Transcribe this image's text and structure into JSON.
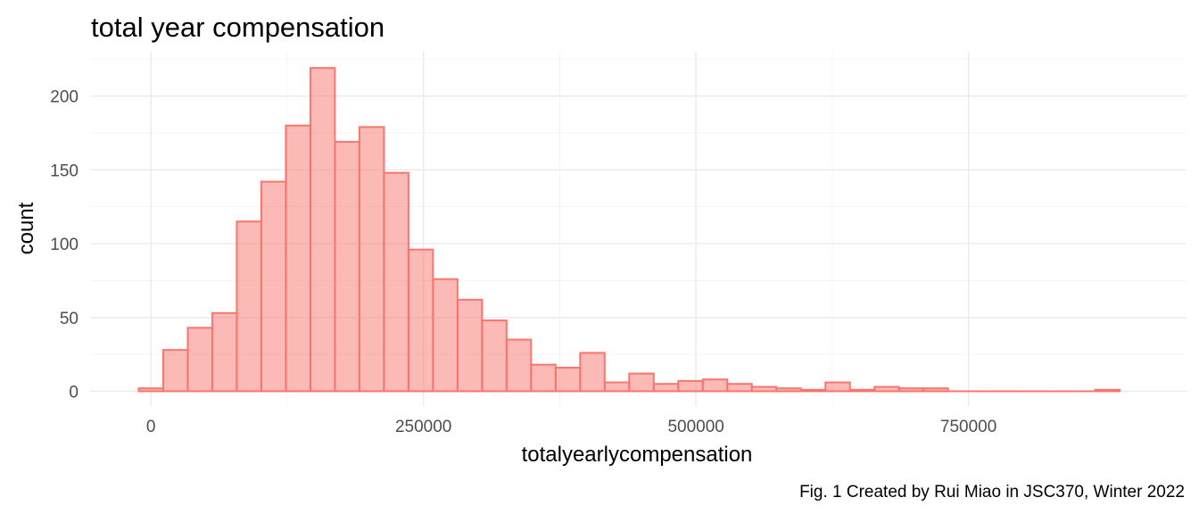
{
  "chart_data": {
    "type": "bar",
    "title": "total year compensation",
    "xlabel": "totalyearlycompensation",
    "ylabel": "count",
    "caption": "Fig. 1 Created by Rui Miao in JSC370, Winter 2022",
    "xlim": [
      -55000,
      950000
    ],
    "ylim": [
      -10,
      230
    ],
    "x_ticks": [
      0,
      250000,
      500000,
      750000
    ],
    "x_tick_labels": [
      "0",
      "250000",
      "500000",
      "750000"
    ],
    "y_ticks": [
      0,
      50,
      100,
      150,
      200
    ],
    "y_tick_labels": [
      "0",
      "50",
      "100",
      "150",
      "200"
    ],
    "bin_width": 22500,
    "bin_centers": [
      0,
      22500,
      45000,
      67500,
      90000,
      112500,
      135000,
      157500,
      180000,
      202500,
      225000,
      247500,
      270000,
      292500,
      315000,
      337500,
      360000,
      382500,
      405000,
      427500,
      450000,
      472500,
      495000,
      517500,
      540000,
      562500,
      585000,
      607500,
      630000,
      652500,
      675000,
      697500,
      720000,
      742500,
      765000,
      787500,
      810000,
      832500,
      855000,
      877500
    ],
    "values": [
      2,
      28,
      43,
      53,
      115,
      142,
      180,
      219,
      169,
      179,
      148,
      96,
      76,
      62,
      48,
      35,
      18,
      16,
      26,
      6,
      12,
      5,
      7,
      8,
      5,
      3,
      2,
      1,
      6,
      1,
      3,
      2,
      2,
      0,
      0,
      0,
      0,
      0,
      0,
      1
    ],
    "grid": true,
    "legend": "none",
    "colors": {
      "fill": "#f8766d",
      "fill_opacity": 0.5,
      "stroke": "#f8766d"
    }
  }
}
